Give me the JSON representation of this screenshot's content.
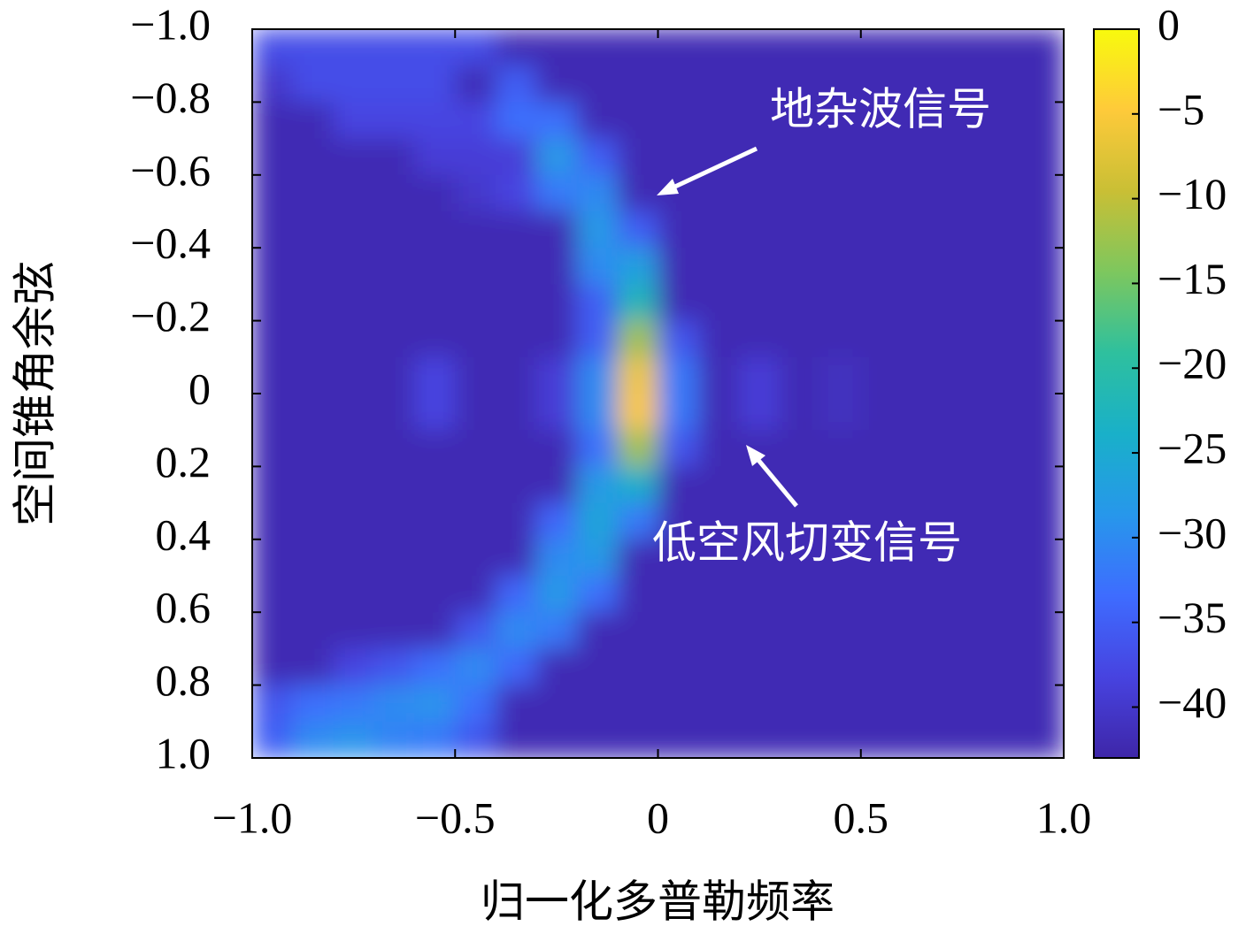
{
  "chart_data": {
    "type": "heatmap",
    "xlabel": "归一化多普勒频率",
    "ylabel": "空间锥角余弦",
    "xlim": [
      -1,
      1
    ],
    "ylim": [
      -1,
      1
    ],
    "y_reversed": true,
    "xticks": [
      {
        "value": -1,
        "label": "−1.0"
      },
      {
        "value": -0.5,
        "label": "−0.5"
      },
      0,
      {
        "value": 0.5,
        "label": "0.5"
      },
      {
        "value": 1,
        "label": "1.0"
      }
    ],
    "yticks": [
      {
        "value": -1,
        "label": "−1.0"
      },
      {
        "value": -0.8,
        "label": "−0.8"
      },
      {
        "value": -0.6,
        "label": "−0.6"
      },
      {
        "value": -0.4,
        "label": "−0.4"
      },
      {
        "value": -0.2,
        "label": "−0.2"
      },
      0,
      {
        "value": 0.2,
        "label": "0.2"
      },
      {
        "value": 0.4,
        "label": "0.4"
      },
      {
        "value": 0.6,
        "label": "0.6"
      },
      {
        "value": 0.8,
        "label": "0.8"
      },
      {
        "value": 1,
        "label": "1.0"
      }
    ],
    "clim": [
      -43,
      0
    ],
    "cticks": [
      0,
      {
        "value": -5,
        "label": "−5"
      },
      {
        "value": -10,
        "label": "−10"
      },
      {
        "value": -15,
        "label": "−15"
      },
      {
        "value": -20,
        "label": "−20"
      },
      {
        "value": -25,
        "label": "−25"
      },
      {
        "value": -30,
        "label": "−30"
      },
      {
        "value": -35,
        "label": "−35"
      },
      {
        "value": -40,
        "label": "−40"
      }
    ],
    "colormap": [
      "#3e26a8",
      "#4743e0",
      "#3e6cff",
      "#2797eb",
      "#19b0c9",
      "#2ec09e",
      "#7dc75e",
      "#c9bf35",
      "#feca3a",
      "#f8fa0d"
    ],
    "annotations": [
      {
        "text": "地杂波信号"
      },
      {
        "text": "低空风切变信号"
      }
    ],
    "z": [
      [
        -37,
        -37,
        -37,
        -37,
        -37,
        -37,
        -42,
        -42,
        -42,
        -42,
        -42,
        -42,
        -42,
        -42,
        -42,
        -42,
        -42,
        -42,
        -42,
        -42
      ],
      [
        -40,
        -37,
        -37,
        -37,
        -37,
        -42,
        -35,
        -42,
        -42,
        -42,
        -42,
        -42,
        -42,
        -42,
        -42,
        -42,
        -42,
        -42,
        -42,
        -42
      ],
      [
        -42,
        -42,
        -38,
        -38,
        -38,
        -38,
        -33,
        -33,
        -42,
        -42,
        -42,
        -42,
        -42,
        -42,
        -42,
        -42,
        -42,
        -42,
        -42,
        -42
      ],
      [
        -42,
        -42,
        -42,
        -42,
        -39,
        -39,
        -39,
        -28,
        -35,
        -42,
        -42,
        -42,
        -42,
        -42,
        -42,
        -42,
        -42,
        -42,
        -42,
        -42
      ],
      [
        -42,
        -42,
        -42,
        -42,
        -42,
        -40,
        -38,
        -32,
        -30,
        -42,
        -42,
        -42,
        -42,
        -42,
        -42,
        -42,
        -42,
        -42,
        -42,
        -42
      ],
      [
        -42,
        -42,
        -42,
        -42,
        -42,
        -42,
        -42,
        -42,
        -28,
        -35,
        -42,
        -42,
        -42,
        -42,
        -42,
        -42,
        -42,
        -42,
        -42,
        -42
      ],
      [
        -42,
        -42,
        -42,
        -42,
        -42,
        -42,
        -42,
        -42,
        -30,
        -27,
        -42,
        -42,
        -42,
        -42,
        -42,
        -42,
        -42,
        -42,
        -42,
        -42
      ],
      [
        -42,
        -42,
        -42,
        -42,
        -42,
        -42,
        -42,
        -42,
        -35,
        -22,
        -42,
        -42,
        -42,
        -42,
        -42,
        -42,
        -42,
        -42,
        -42,
        -42
      ],
      [
        -42,
        -42,
        -42,
        -42,
        -42,
        -42,
        -42,
        -42,
        -35,
        -12,
        -36,
        -42,
        -42,
        -42,
        -42,
        -42,
        -42,
        -42,
        -42,
        -42
      ],
      [
        -42,
        -42,
        -42,
        -42,
        -38,
        -42,
        -42,
        -39,
        -30,
        -6,
        -32,
        -42,
        -39,
        -42,
        -41,
        -42,
        -42,
        -42,
        -42,
        -42
      ],
      [
        -42,
        -42,
        -42,
        -42,
        -38,
        -42,
        -42,
        -39,
        -30,
        -5,
        -32,
        -42,
        -39,
        -42,
        -41,
        -42,
        -42,
        -42,
        -42,
        -42
      ],
      [
        -42,
        -42,
        -42,
        -42,
        -42,
        -42,
        -42,
        -42,
        -33,
        -12,
        -36,
        -42,
        -42,
        -42,
        -42,
        -42,
        -42,
        -42,
        -42,
        -42
      ],
      [
        -42,
        -42,
        -42,
        -42,
        -42,
        -42,
        -42,
        -42,
        -28,
        -24,
        -42,
        -42,
        -42,
        -42,
        -42,
        -42,
        -42,
        -42,
        -42,
        -42
      ],
      [
        -42,
        -42,
        -42,
        -42,
        -42,
        -42,
        -42,
        -34,
        -26,
        -32,
        -42,
        -42,
        -42,
        -42,
        -42,
        -42,
        -42,
        -42,
        -42,
        -42
      ],
      [
        -42,
        -42,
        -42,
        -42,
        -42,
        -42,
        -42,
        -30,
        -28,
        -42,
        -42,
        -42,
        -42,
        -42,
        -42,
        -42,
        -42,
        -42,
        -42,
        -42
      ],
      [
        -42,
        -42,
        -42,
        -42,
        -42,
        -42,
        -34,
        -28,
        -33,
        -42,
        -42,
        -42,
        -42,
        -42,
        -42,
        -42,
        -42,
        -42,
        -42,
        -42
      ],
      [
        -42,
        -42,
        -42,
        -42,
        -42,
        -36,
        -30,
        -32,
        -42,
        -42,
        -42,
        -42,
        -42,
        -42,
        -42,
        -42,
        -42,
        -42,
        -42,
        -42
      ],
      [
        -42,
        -42,
        -38,
        -36,
        -33,
        -30,
        -34,
        -42,
        -42,
        -42,
        -42,
        -42,
        -42,
        -42,
        -42,
        -42,
        -42,
        -42,
        -42,
        -42
      ],
      [
        -36,
        -33,
        -32,
        -30,
        -29,
        -33,
        -42,
        -42,
        -42,
        -42,
        -42,
        -42,
        -42,
        -42,
        -42,
        -42,
        -42,
        -42,
        -42,
        -42
      ],
      [
        -35,
        -30,
        -29,
        -31,
        -32,
        -36,
        -42,
        -42,
        -42,
        -42,
        -42,
        -42,
        -42,
        -42,
        -42,
        -42,
        -42,
        -42,
        -42,
        -42
      ]
    ]
  }
}
